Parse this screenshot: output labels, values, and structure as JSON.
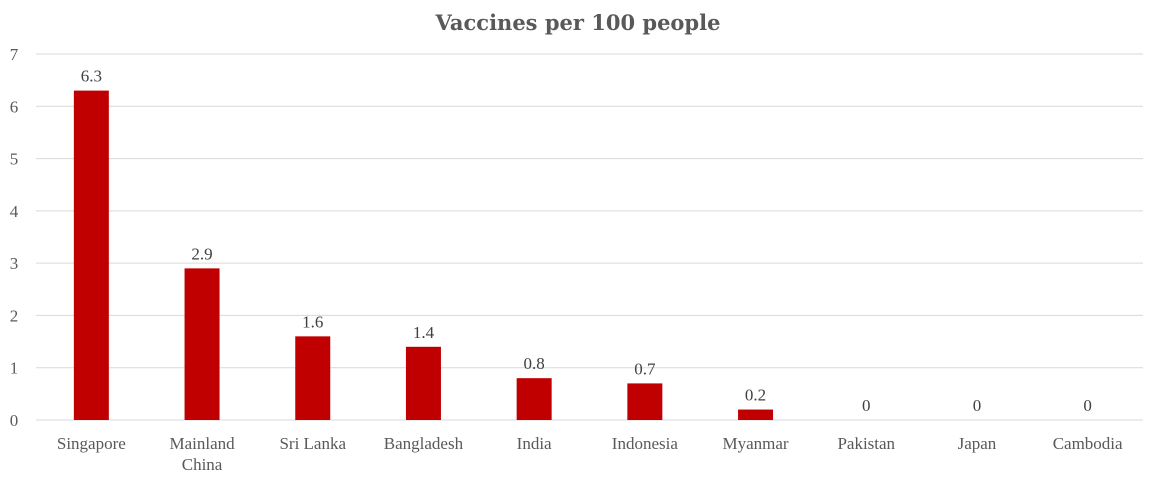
{
  "chart_data": {
    "type": "bar",
    "title": "Vaccines per 100 people",
    "xlabel": "",
    "ylabel": "",
    "ylim": [
      0,
      7
    ],
    "yticks": [
      "0",
      "1",
      "2",
      "3",
      "4",
      "5",
      "6",
      "7"
    ],
    "categories": [
      [
        "Singapore"
      ],
      [
        "Mainland",
        "China"
      ],
      [
        "Sri Lanka"
      ],
      [
        "Bangladesh"
      ],
      [
        "India"
      ],
      [
        "Indonesia"
      ],
      [
        "Myanmar"
      ],
      [
        "Pakistan"
      ],
      [
        "Japan"
      ],
      [
        "Cambodia"
      ]
    ],
    "values": [
      6.3,
      2.9,
      1.6,
      1.4,
      0.8,
      0.7,
      0.2,
      0,
      0,
      0
    ],
    "data_labels": [
      "6.3",
      "2.9",
      "1.6",
      "1.4",
      "0.8",
      "0.7",
      "0.2",
      "0",
      "0",
      "0"
    ],
    "bar_color": "#c00000",
    "grid": true,
    "legend": "none"
  }
}
